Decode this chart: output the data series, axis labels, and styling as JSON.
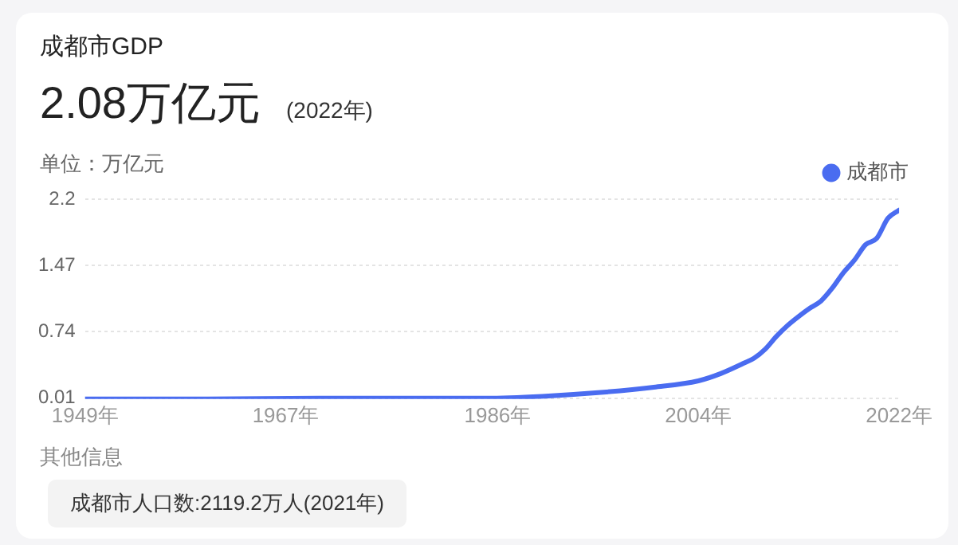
{
  "chart_data": {
    "type": "line",
    "title": "成都市GDP",
    "subtitle": "2.08万亿元",
    "ylabel": "单位：万亿元",
    "annotations": [
      "(2022年)",
      "其他信息",
      "成都市人口数:2119.2万人(2021年)"
    ],
    "x": [
      1949,
      1960,
      1970,
      1978,
      1985,
      1990,
      1995,
      2000,
      2004,
      2006,
      2008,
      2009,
      2010,
      2011,
      2012,
      2013,
      2014,
      2015,
      2016,
      2017,
      2018,
      2019,
      2020,
      2021,
      2022
    ],
    "series": [
      {
        "name": "成都市",
        "color": "#4a6cf0",
        "values": [
          0,
          0,
          0.01,
          0.01,
          0.01,
          0.03,
          0.07,
          0.13,
          0.2,
          0.28,
          0.39,
          0.45,
          0.55,
          0.69,
          0.81,
          0.91,
          1.0,
          1.08,
          1.22,
          1.39,
          1.53,
          1.7,
          1.77,
          1.99,
          2.08
        ]
      }
    ],
    "xlim": [
      1949,
      2022
    ],
    "xticks": [
      {
        "value": 1949,
        "label": "1949年"
      },
      {
        "value": 1967,
        "label": "1967年"
      },
      {
        "value": 1986,
        "label": "1986年"
      },
      {
        "value": 2004,
        "label": "2004年"
      },
      {
        "value": 2022,
        "label": "2022年"
      }
    ],
    "ylim": [
      0,
      2.2
    ],
    "yticks": [
      0.01,
      0.74,
      1.47,
      2.2
    ],
    "grid": "y",
    "legend": "top right",
    "marker": "none",
    "line_style": "solid"
  }
}
